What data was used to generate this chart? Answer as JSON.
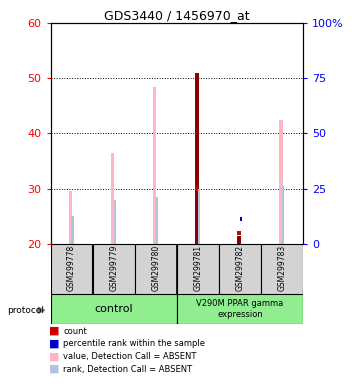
{
  "title": "GDS3440 / 1456970_at",
  "samples": [
    "GSM299778",
    "GSM299779",
    "GSM299780",
    "GSM299781",
    "GSM299782",
    "GSM299783"
  ],
  "ylim_left": [
    20,
    60
  ],
  "ylim_right": [
    0,
    100
  ],
  "yticks_left": [
    20,
    30,
    40,
    50,
    60
  ],
  "yticks_right": [
    0,
    25,
    50,
    75,
    100
  ],
  "value_bars": [
    29.5,
    36.5,
    48.5,
    51.0,
    21.5,
    42.5
  ],
  "rank_bars": [
    25.0,
    28.0,
    28.5,
    30.0,
    null,
    30.5
  ],
  "count_vals": [
    null,
    null,
    null,
    30.0,
    22.0,
    null
  ],
  "pct_rank_vals": [
    null,
    null,
    null,
    null,
    24.5,
    null
  ],
  "absent_value": [
    true,
    true,
    true,
    false,
    false,
    true
  ],
  "absent_rank": [
    true,
    true,
    true,
    true,
    true,
    true
  ],
  "color_value_absent": "#ffb6c1",
  "color_value_present": "#8b0000",
  "color_rank_absent": "#b0c4de",
  "color_rank_present": "#0000cc",
  "color_count": "#cc0000",
  "color_pct_rank": "#0000cc",
  "group_color": "#90ee90",
  "sample_bg": "#d3d3d3",
  "baseline": 20
}
